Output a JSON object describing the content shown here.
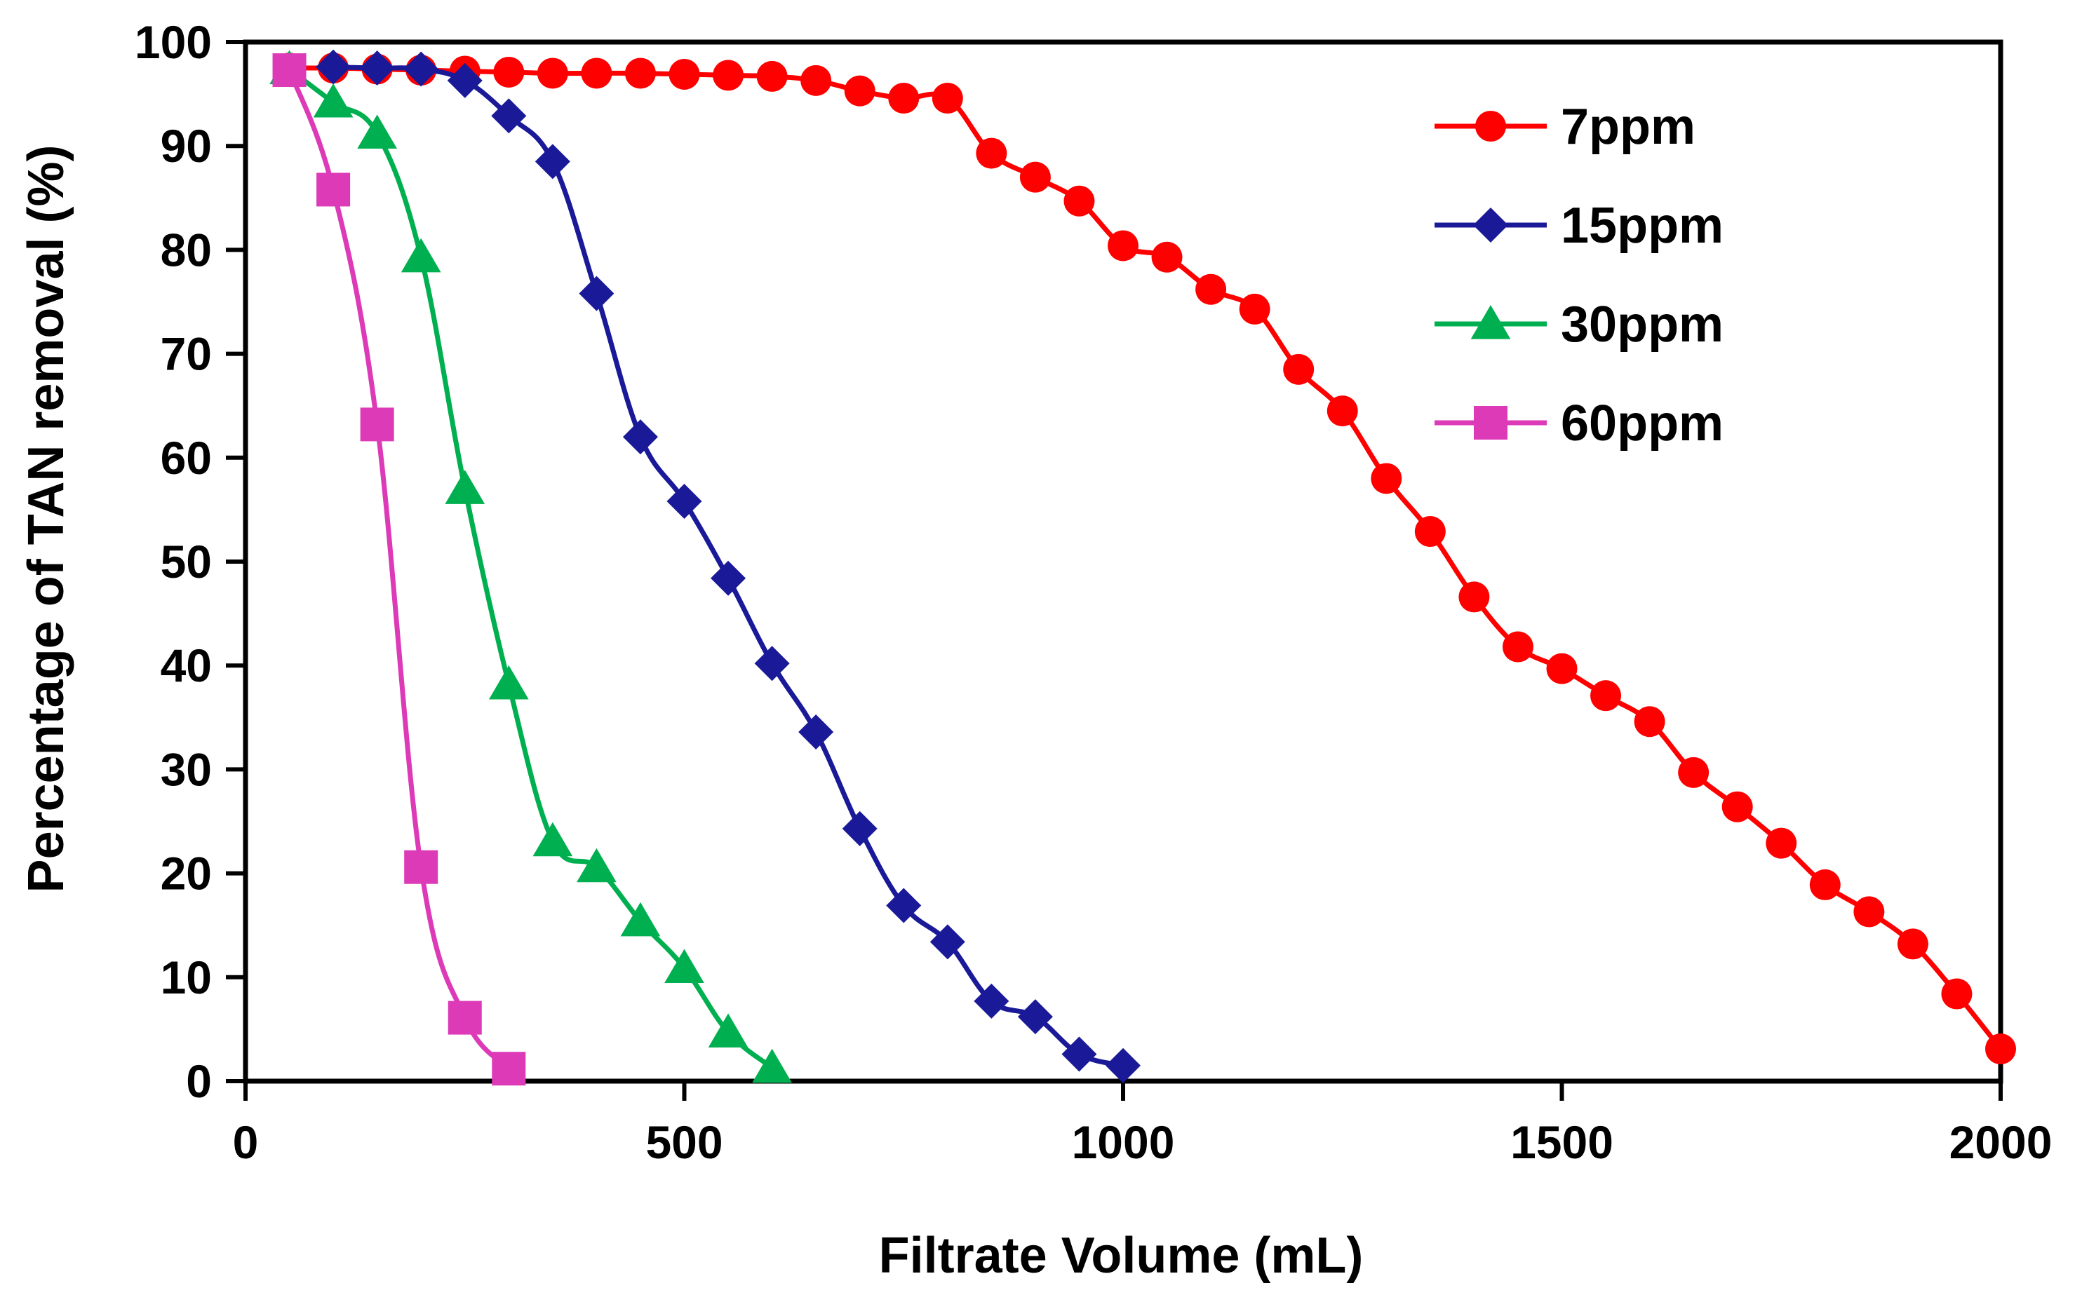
{
  "chart_data": {
    "type": "line",
    "title": "",
    "xlabel": "Filtrate Volume (mL)",
    "ylabel": "Percentage of TAN removal (%)",
    "xlim": [
      0,
      2000
    ],
    "ylim": [
      0,
      100
    ],
    "x_ticks": [
      0,
      500,
      1000,
      1500,
      2000
    ],
    "y_ticks": [
      0,
      10,
      20,
      30,
      40,
      50,
      60,
      70,
      80,
      90,
      100
    ],
    "grid": false,
    "legend_position": "top-right",
    "series": [
      {
        "name": "7ppm",
        "color": "#ff0000",
        "marker": "circle",
        "x": [
          50,
          100,
          150,
          200,
          250,
          300,
          350,
          400,
          450,
          500,
          550,
          600,
          650,
          700,
          750,
          800,
          850,
          900,
          950,
          1000,
          1050,
          1100,
          1150,
          1200,
          1250,
          1300,
          1350,
          1400,
          1450,
          1500,
          1550,
          1600,
          1650,
          1700,
          1750,
          1800,
          1850,
          1900,
          1950,
          2000
        ],
        "y": [
          97.5,
          97.5,
          97.4,
          97.3,
          97.2,
          97.1,
          97.0,
          97.0,
          97.0,
          96.9,
          96.8,
          96.7,
          96.3,
          95.3,
          94.6,
          94.6,
          89.3,
          87.0,
          84.7,
          80.4,
          79.3,
          76.2,
          74.3,
          68.5,
          64.5,
          58.0,
          52.9,
          46.6,
          41.8,
          39.7,
          37.1,
          34.6,
          29.7,
          26.4,
          22.9,
          18.9,
          16.3,
          13.2,
          8.4,
          3.1
        ]
      },
      {
        "name": "15ppm",
        "color": "#1a1a99",
        "marker": "diamond",
        "x": [
          100,
          150,
          200,
          250,
          300,
          350,
          400,
          450,
          500,
          550,
          600,
          650,
          700,
          750,
          800,
          850,
          900,
          950,
          1000
        ],
        "y": [
          97.6,
          97.5,
          97.4,
          96.3,
          92.9,
          88.5,
          75.8,
          62.0,
          55.8,
          48.4,
          40.2,
          33.6,
          24.3,
          16.9,
          13.4,
          7.7,
          6.2,
          2.6,
          1.5
        ]
      },
      {
        "name": "30ppm",
        "color": "#00b050",
        "marker": "triangle",
        "x": [
          50,
          100,
          150,
          200,
          250,
          300,
          350,
          400,
          450,
          500,
          550,
          600
        ],
        "y": [
          97.4,
          94.2,
          91.2,
          79.3,
          57.0,
          38.2,
          23.1,
          20.6,
          15.4,
          10.9,
          4.7,
          1.3
        ]
      },
      {
        "name": "60ppm",
        "color": "#dd3ab8",
        "marker": "square",
        "x": [
          50,
          100,
          150,
          200,
          250,
          300
        ],
        "y": [
          97.3,
          85.8,
          63.2,
          20.6,
          6.1,
          1.2
        ]
      }
    ]
  }
}
